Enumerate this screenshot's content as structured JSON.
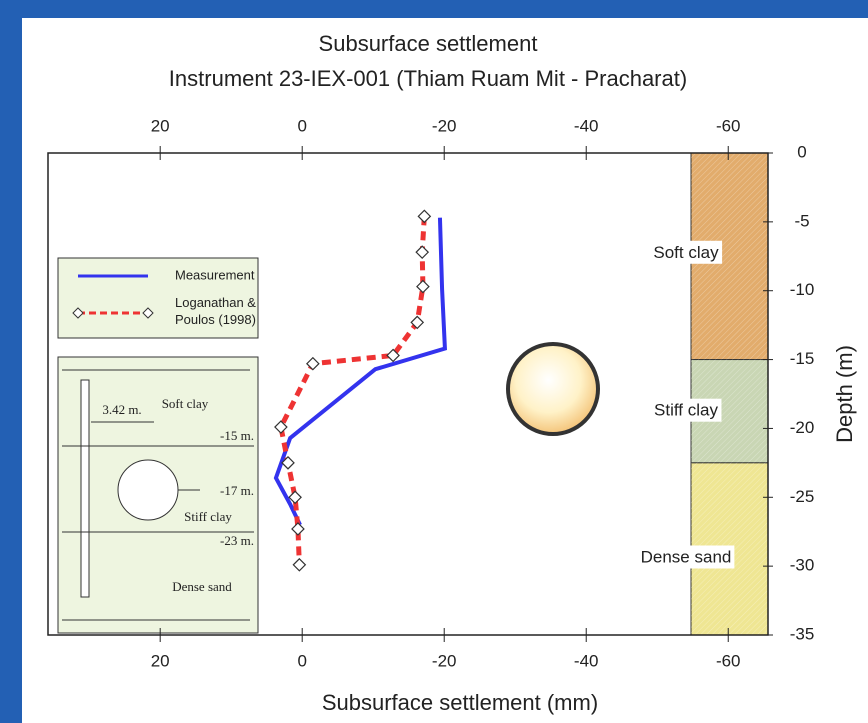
{
  "chart_data": {
    "type": "line",
    "title": [
      "Subsurface settlement",
      "Instrument 23-IEX-001  (Thiam Ruam Mit - Pracharat)"
    ],
    "x_label": "Subsurface settlement (mm)",
    "y_label": "Depth (m)",
    "xlim": [
      35.8,
      -65.6
    ],
    "xticks": [
      20,
      0,
      -20,
      -40,
      -60
    ],
    "ylim": [
      0,
      -35
    ],
    "yticks": [
      0,
      -5,
      -10,
      -15,
      -20,
      -25,
      -30,
      -35
    ],
    "series": [
      {
        "name": "Measurement",
        "color": "#3333ee",
        "marker": "none",
        "dash": false,
        "x": [
          -19.4,
          -19.7,
          -20.1,
          -10.3,
          1.7,
          3.7,
          1.7,
          0.3
        ],
        "y": [
          -4.7,
          -9.9,
          -14.2,
          -15.7,
          -20.7,
          -23.6,
          -25.5,
          -27
        ]
      },
      {
        "name": "Loganathan & Poulos (1998)",
        "color": "#ee3333",
        "marker": "diamond",
        "dash": true,
        "x": [
          -17.2,
          -16.9,
          -17,
          -16.2,
          -12.8,
          -1.5,
          3,
          2,
          1,
          0.6,
          0.4
        ],
        "y": [
          -4.6,
          -7.2,
          -9.7,
          -12.3,
          -14.7,
          -15.3,
          -19.9,
          -22.5,
          -25,
          -27.3,
          -29.9
        ]
      }
    ],
    "layers": [
      {
        "name": "Soft clay",
        "top": 0,
        "bottom": -15,
        "color": "#e2ac6c"
      },
      {
        "name": "Stiff clay",
        "top": -15,
        "bottom": -22.5,
        "color": "#c9d6b4"
      },
      {
        "name": "Dense sand",
        "top": -22.5,
        "bottom": -35,
        "color": "#efe693"
      }
    ]
  },
  "inset": {
    "labels": [
      "Soft clay",
      "3.42 m.",
      "-15 m.",
      "-17 m.",
      "Stiff clay",
      "-23 m.",
      "Dense sand"
    ]
  }
}
